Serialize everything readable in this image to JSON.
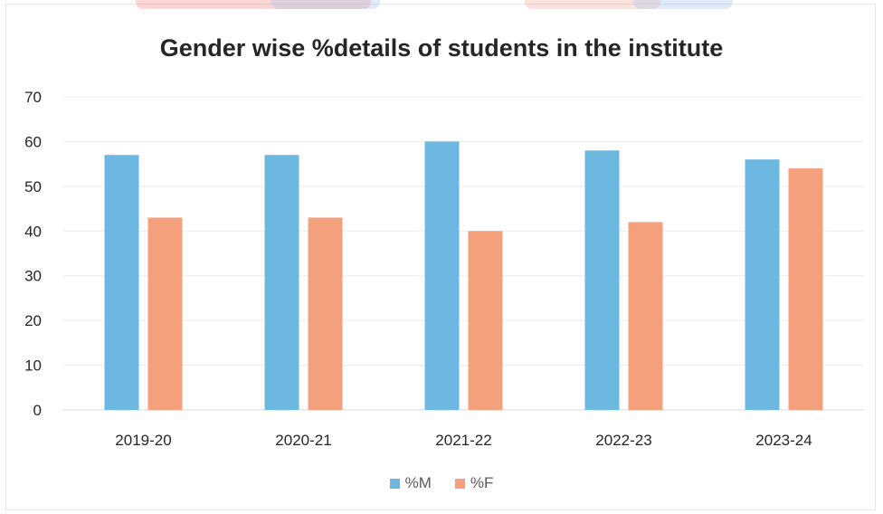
{
  "chart_data": {
    "type": "bar",
    "title": "Gender wise %details of students in the institute",
    "categories": [
      "2019-20",
      "2020-21",
      "2021-22",
      "2022-23",
      "2023-24"
    ],
    "series": [
      {
        "name": "%M",
        "values": [
          57,
          57,
          60,
          58,
          56
        ],
        "color": "#6cb8e0"
      },
      {
        "name": "%F",
        "values": [
          43,
          43,
          40,
          42,
          54
        ],
        "color": "#f4a07c"
      }
    ],
    "ylim": [
      0,
      70
    ],
    "yticks": [
      0,
      10,
      20,
      30,
      40,
      50,
      60,
      70
    ],
    "xlabel": "",
    "ylabel": "",
    "grid": true,
    "legend": "bottom"
  },
  "colors": {
    "grid": "#ececec",
    "deco_red": "#f28a8a",
    "deco_blue": "#a9c3ec"
  }
}
